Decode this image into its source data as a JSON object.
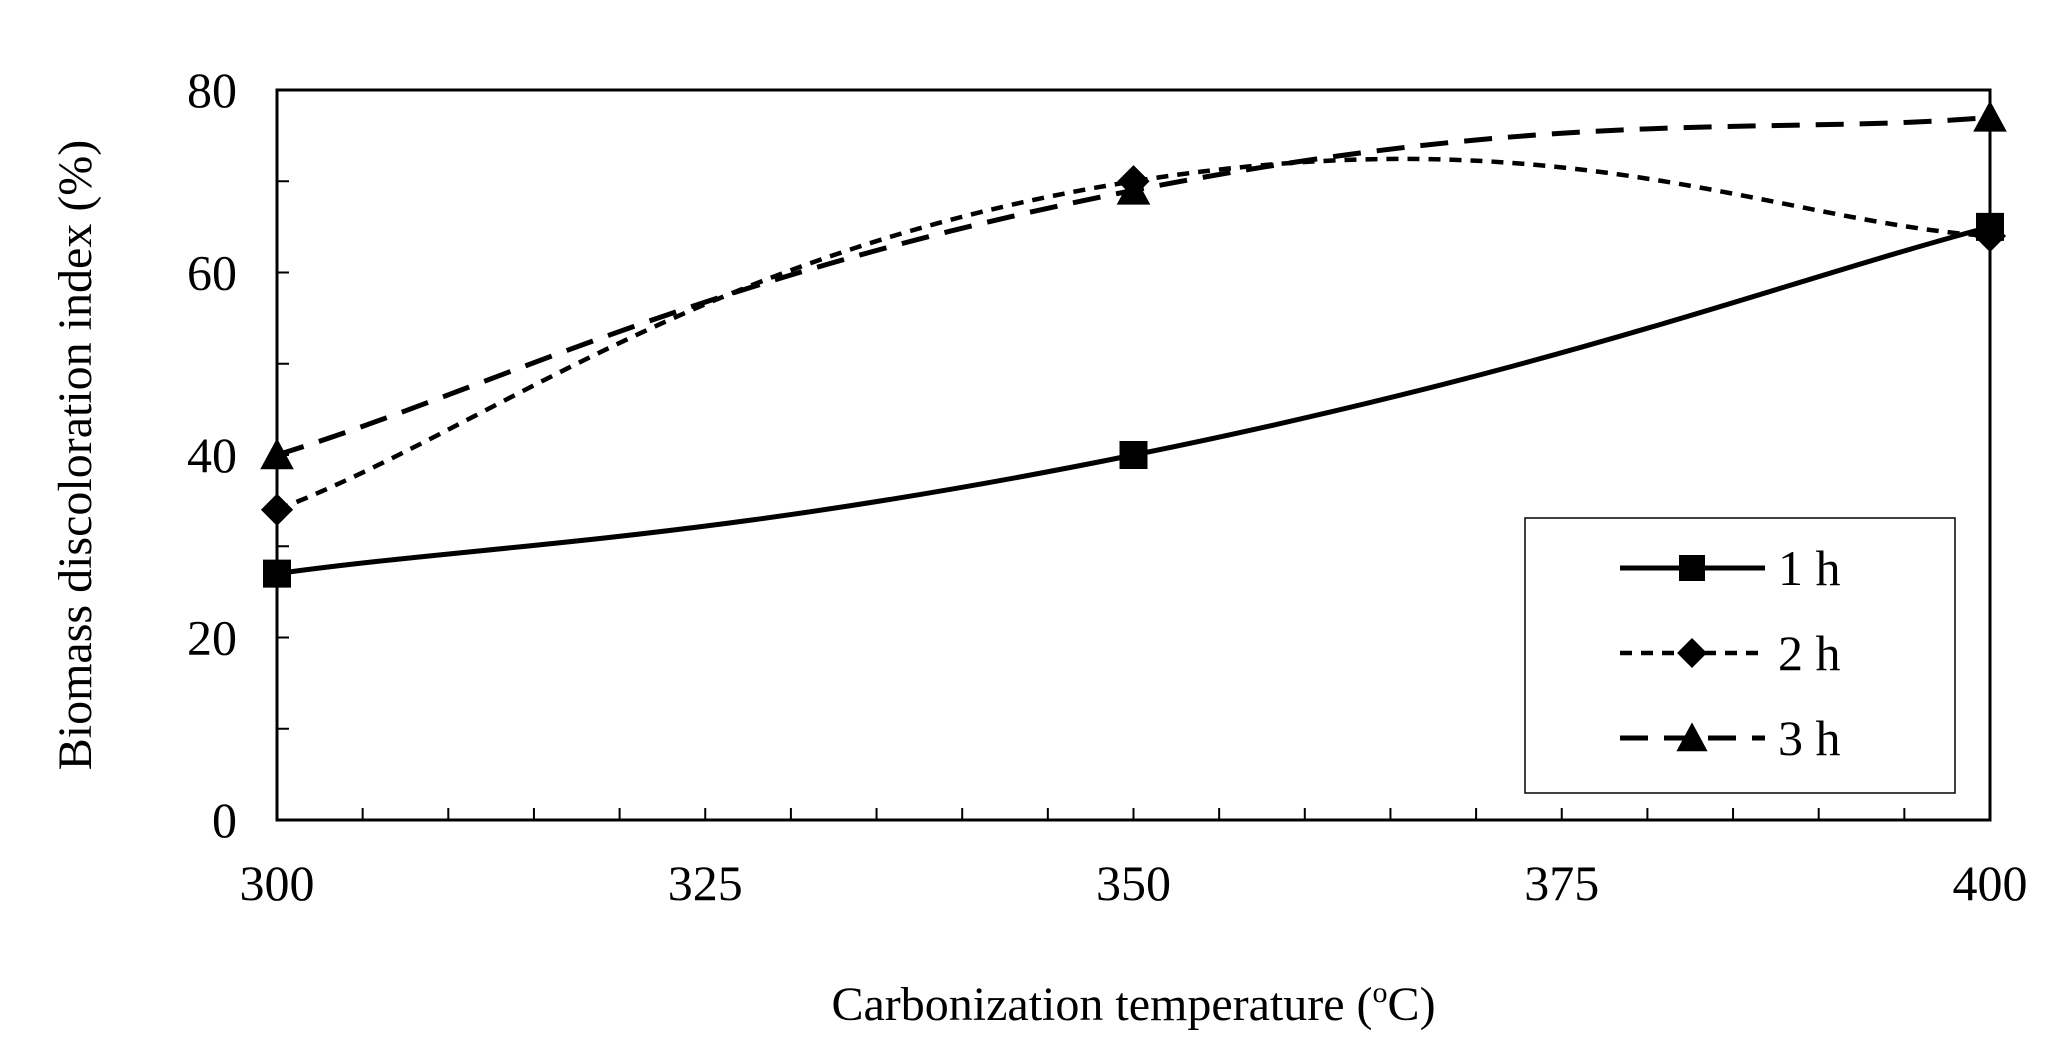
{
  "chart_data": {
    "type": "line",
    "title": "",
    "xlabel_main": "Carbonization temperature (",
    "xlabel_sup": "o",
    "xlabel_end": "C)",
    "ylabel": "Biomass discoloration index (%)",
    "xlim": [
      300,
      400
    ],
    "ylim": [
      0,
      80
    ],
    "x_ticks": [
      300,
      325,
      350,
      375,
      400
    ],
    "y_ticks": [
      0,
      20,
      40,
      60,
      80
    ],
    "x": [
      300,
      350,
      400
    ],
    "legend_position": "bottom-right",
    "series": [
      {
        "name": "1 h",
        "marker": "square",
        "dash": "solid",
        "values": [
          27,
          40,
          65
        ]
      },
      {
        "name": "2 h",
        "marker": "diamond",
        "dash": "short-dash",
        "values": [
          34,
          70,
          64
        ]
      },
      {
        "name": "3 h",
        "marker": "triangle",
        "dash": "long-dash",
        "values": [
          40,
          69,
          77
        ]
      }
    ]
  }
}
